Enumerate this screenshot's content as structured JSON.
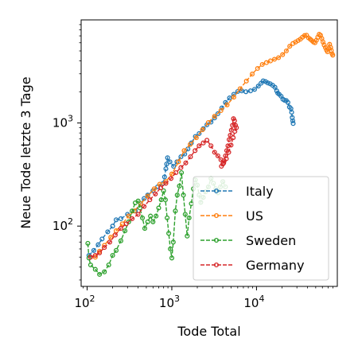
{
  "chart_data": {
    "type": "line",
    "title": "",
    "xlabel": "Tode Total",
    "ylabel": "Neue Tode letzte 3 Tage",
    "xscale": "log",
    "yscale": "log",
    "xlim": [
      85,
      90000
    ],
    "ylim": [
      26,
      10000
    ],
    "xticks": [
      {
        "value": 100,
        "base": "10",
        "exp": "2"
      },
      {
        "value": 1000,
        "base": "10",
        "exp": "3"
      },
      {
        "value": 10000,
        "base": "10",
        "exp": "4"
      }
    ],
    "yticks": [
      {
        "value": 100,
        "base": "10",
        "exp": "2"
      },
      {
        "value": 1000,
        "base": "10",
        "exp": "3"
      }
    ],
    "grid": false,
    "legend": "lower-right",
    "line_style": "dashed",
    "marker": "open-circle",
    "series": [
      {
        "name": "Italy",
        "color": "#1f77b4",
        "points": [
          [
            105,
            52
          ],
          [
            120,
            58
          ],
          [
            135,
            66
          ],
          [
            150,
            75
          ],
          [
            175,
            88
          ],
          [
            200,
            100
          ],
          [
            220,
            115
          ],
          [
            250,
            118
          ],
          [
            300,
            130
          ],
          [
            370,
            140
          ],
          [
            430,
            165
          ],
          [
            470,
            185
          ],
          [
            520,
            200
          ],
          [
            600,
            220
          ],
          [
            680,
            240
          ],
          [
            790,
            260
          ],
          [
            820,
            300
          ],
          [
            850,
            360
          ],
          [
            870,
            400
          ],
          [
            890,
            460
          ],
          [
            950,
            420
          ],
          [
            1050,
            380
          ],
          [
            1150,
            420
          ],
          [
            1280,
            470
          ],
          [
            1420,
            500
          ],
          [
            1550,
            560
          ],
          [
            1700,
            640
          ],
          [
            1900,
            740
          ],
          [
            2100,
            790
          ],
          [
            2350,
            880
          ],
          [
            2600,
            960
          ],
          [
            2900,
            1020
          ],
          [
            3200,
            1120
          ],
          [
            3500,
            1230
          ],
          [
            3900,
            1400
          ],
          [
            4300,
            1580
          ],
          [
            4800,
            1750
          ],
          [
            5400,
            1900
          ],
          [
            6000,
            2020
          ],
          [
            6700,
            2050
          ],
          [
            7500,
            2010
          ],
          [
            8500,
            2050
          ],
          [
            9500,
            2120
          ],
          [
            10500,
            2280
          ],
          [
            11300,
            2430
          ],
          [
            12000,
            2560
          ],
          [
            12800,
            2520
          ],
          [
            13600,
            2450
          ],
          [
            14500,
            2400
          ],
          [
            15500,
            2320
          ],
          [
            16500,
            2220
          ],
          [
            17300,
            2050
          ],
          [
            17800,
            1950
          ],
          [
            18500,
            1900
          ],
          [
            19500,
            1820
          ],
          [
            20500,
            1700
          ],
          [
            21500,
            1660
          ],
          [
            22500,
            1650
          ],
          [
            23500,
            1580
          ],
          [
            24500,
            1430
          ],
          [
            25500,
            1380
          ],
          [
            26000,
            1270
          ],
          [
            26400,
            1130
          ],
          [
            26800,
            1050
          ],
          [
            27100,
            990
          ]
        ]
      },
      {
        "name": "US",
        "color": "#ff7f0e",
        "points": [
          [
            125,
            50
          ],
          [
            140,
            57
          ],
          [
            160,
            65
          ],
          [
            190,
            78
          ],
          [
            220,
            90
          ],
          [
            260,
            105
          ],
          [
            310,
            125
          ],
          [
            360,
            140
          ],
          [
            430,
            165
          ],
          [
            520,
            195
          ],
          [
            620,
            230
          ],
          [
            720,
            255
          ],
          [
            850,
            270
          ],
          [
            1000,
            320
          ],
          [
            1200,
            420
          ],
          [
            1400,
            540
          ],
          [
            1650,
            620
          ],
          [
            1950,
            720
          ],
          [
            2300,
            860
          ],
          [
            2700,
            1010
          ],
          [
            3200,
            1160
          ],
          [
            3800,
            1320
          ],
          [
            4500,
            1500
          ],
          [
            5400,
            1780
          ],
          [
            6400,
            2150
          ],
          [
            7600,
            2550
          ],
          [
            8900,
            2980
          ],
          [
            10300,
            3380
          ],
          [
            11700,
            3700
          ],
          [
            13100,
            3850
          ],
          [
            14600,
            4000
          ],
          [
            16300,
            4150
          ],
          [
            18200,
            4300
          ],
          [
            20300,
            4600
          ],
          [
            22500,
            5000
          ],
          [
            24700,
            5550
          ],
          [
            26900,
            5900
          ],
          [
            29000,
            6100
          ],
          [
            31000,
            6300
          ],
          [
            33000,
            6500
          ],
          [
            35000,
            6800
          ],
          [
            37000,
            7050
          ],
          [
            39000,
            7100
          ],
          [
            41000,
            6700
          ],
          [
            43000,
            6500
          ],
          [
            45000,
            6300
          ],
          [
            47000,
            6100
          ],
          [
            49000,
            6000
          ],
          [
            51000,
            6350
          ],
          [
            53000,
            6800
          ],
          [
            55000,
            7250
          ],
          [
            57000,
            7100
          ],
          [
            59000,
            6600
          ],
          [
            61000,
            6100
          ],
          [
            63000,
            5700
          ],
          [
            65000,
            5400
          ],
          [
            67000,
            5100
          ],
          [
            69000,
            4900
          ],
          [
            71000,
            5250
          ],
          [
            73000,
            5800
          ],
          [
            75000,
            5400
          ],
          [
            76500,
            5050
          ],
          [
            78000,
            4700
          ],
          [
            79500,
            4550
          ]
        ]
      },
      {
        "name": "Sweden",
        "color": "#2ca02c",
        "points": [
          [
            102,
            68
          ],
          [
            105,
            49
          ],
          [
            110,
            42
          ],
          [
            125,
            38
          ],
          [
            140,
            34
          ],
          [
            160,
            36
          ],
          [
            180,
            42
          ],
          [
            200,
            52
          ],
          [
            220,
            58
          ],
          [
            250,
            72
          ],
          [
            280,
            90
          ],
          [
            310,
            110
          ],
          [
            340,
            140
          ],
          [
            370,
            168
          ],
          [
            400,
            175
          ],
          [
            420,
            150
          ],
          [
            450,
            120
          ],
          [
            480,
            95
          ],
          [
            520,
            110
          ],
          [
            560,
            125
          ],
          [
            600,
            110
          ],
          [
            650,
            125
          ],
          [
            700,
            150
          ],
          [
            750,
            180
          ],
          [
            800,
            220
          ],
          [
            840,
            180
          ],
          [
            880,
            120
          ],
          [
            920,
            85
          ],
          [
            960,
            60
          ],
          [
            1000,
            49
          ],
          [
            1040,
            70
          ],
          [
            1100,
            140
          ],
          [
            1160,
            200
          ],
          [
            1230,
            245
          ],
          [
            1300,
            330
          ],
          [
            1370,
            200
          ],
          [
            1440,
            130
          ],
          [
            1520,
            80
          ],
          [
            1600,
            120
          ],
          [
            1700,
            165
          ],
          [
            1800,
            230
          ],
          [
            1900,
            280
          ],
          [
            2000,
            250
          ],
          [
            2100,
            200
          ],
          [
            2200,
            170
          ],
          [
            2350,
            190
          ],
          [
            2500,
            215
          ],
          [
            2700,
            240
          ],
          [
            2900,
            290
          ],
          [
            3100,
            260
          ],
          [
            3300,
            230
          ],
          [
            3500,
            210
          ],
          [
            3750,
            240
          ],
          [
            4000,
            270
          ],
          [
            4300,
            240
          ]
        ]
      },
      {
        "name": "Germany",
        "color": "#d62728",
        "points": [
          [
            110,
            50
          ],
          [
            125,
            52
          ],
          [
            140,
            55
          ],
          [
            160,
            62
          ],
          [
            185,
            70
          ],
          [
            215,
            82
          ],
          [
            250,
            95
          ],
          [
            290,
            105
          ],
          [
            340,
            118
          ],
          [
            400,
            130
          ],
          [
            470,
            155
          ],
          [
            550,
            180
          ],
          [
            640,
            205
          ],
          [
            740,
            235
          ],
          [
            850,
            260
          ],
          [
            980,
            290
          ],
          [
            1120,
            330
          ],
          [
            1280,
            370
          ],
          [
            1460,
            410
          ],
          [
            1660,
            470
          ],
          [
            1880,
            540
          ],
          [
            2100,
            600
          ],
          [
            2350,
            640
          ],
          [
            2600,
            680
          ],
          [
            2900,
            600
          ],
          [
            3200,
            520
          ],
          [
            3500,
            480
          ],
          [
            3800,
            440
          ],
          [
            4100,
            410
          ],
          [
            4400,
            450
          ],
          [
            4700,
            520
          ],
          [
            5000,
            610
          ],
          [
            5300,
            720
          ],
          [
            5550,
            830
          ],
          [
            5800,
            900
          ],
          [
            5650,
            950
          ],
          [
            5500,
            1050
          ],
          [
            5350,
            1100
          ],
          [
            5200,
            950
          ],
          [
            5050,
            850
          ],
          [
            4900,
            760
          ],
          [
            4750,
            690
          ],
          [
            4600,
            600
          ],
          [
            4450,
            540
          ],
          [
            4300,
            480
          ],
          [
            4150,
            430
          ],
          [
            4000,
            400
          ],
          [
            3850,
            380
          ]
        ]
      }
    ]
  }
}
